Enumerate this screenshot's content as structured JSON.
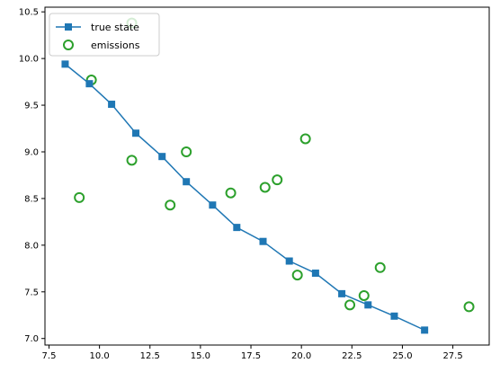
{
  "chart_data": {
    "type": "line",
    "title": "",
    "xlabel": "",
    "ylabel": "",
    "xlim": [
      7.3,
      29.3
    ],
    "ylim": [
      6.93,
      10.55
    ],
    "xticks": [
      7.5,
      10.0,
      12.5,
      15.0,
      17.5,
      20.0,
      22.5,
      25.0,
      27.5
    ],
    "xtick_labels": [
      "7.5",
      "10.0",
      "12.5",
      "15.0",
      "17.5",
      "20.0",
      "22.5",
      "25.0",
      "27.5"
    ],
    "yticks": [
      7.0,
      7.5,
      8.0,
      8.5,
      9.0,
      9.5,
      10.0,
      10.5
    ],
    "ytick_labels": [
      "7.0",
      "7.5",
      "8.0",
      "8.5",
      "9.0",
      "9.5",
      "10.0",
      "10.5"
    ],
    "grid": false,
    "legend_position": "top-left",
    "legend": [
      "true state",
      "emissions"
    ],
    "series": [
      {
        "name": "true state",
        "kind": "line-with-square-markers",
        "color": "#1f77b4",
        "points": [
          [
            8.3,
            9.94
          ],
          [
            9.5,
            9.73
          ],
          [
            10.6,
            9.51
          ],
          [
            11.8,
            9.2
          ],
          [
            13.1,
            8.95
          ],
          [
            14.3,
            8.68
          ],
          [
            15.6,
            8.43
          ],
          [
            16.8,
            8.19
          ],
          [
            18.1,
            8.04
          ],
          [
            19.4,
            7.83
          ],
          [
            20.7,
            7.7
          ],
          [
            22.0,
            7.48
          ],
          [
            23.3,
            7.36
          ],
          [
            24.6,
            7.24
          ],
          [
            26.1,
            7.09
          ]
        ]
      },
      {
        "name": "emissions",
        "kind": "hollow-circle-markers",
        "color": "#2ca02c",
        "points": [
          [
            9.0,
            8.51
          ],
          [
            9.6,
            9.77
          ],
          [
            11.6,
            10.38
          ],
          [
            11.6,
            8.91
          ],
          [
            13.5,
            8.43
          ],
          [
            14.3,
            9.0
          ],
          [
            16.5,
            8.56
          ],
          [
            18.2,
            8.62
          ],
          [
            18.8,
            8.7
          ],
          [
            19.8,
            7.68
          ],
          [
            20.2,
            9.14
          ],
          [
            22.4,
            7.36
          ],
          [
            23.1,
            7.46
          ],
          [
            23.9,
            7.76
          ],
          [
            28.3,
            7.34
          ]
        ]
      }
    ]
  }
}
